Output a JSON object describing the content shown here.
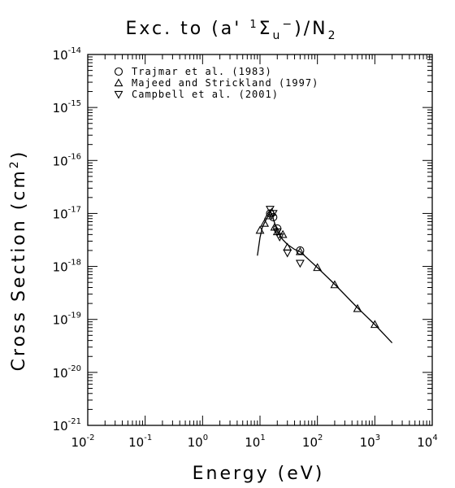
{
  "chart_data": {
    "type": "scatter",
    "title": {
      "prefix": "Exc. to (a'",
      "sup": "1",
      "sigma": "Σ",
      "sub": "u",
      "minus": "−",
      "suffix": ")/N",
      "suffix_sub": "2"
    },
    "xlabel": "Energy (eV)",
    "ylabel": "Cross Section (cm",
    "ylabel_sup": "2",
    "ylabel_end": ")",
    "x_scale": "log",
    "y_scale": "log",
    "xlim": [
      0.01,
      10000
    ],
    "ylim": [
      1e-21,
      1e-14
    ],
    "x_ticks": [
      {
        "base": "10",
        "exp": "-2"
      },
      {
        "base": "10",
        "exp": "-1"
      },
      {
        "base": "10",
        "exp": "0"
      },
      {
        "base": "10",
        "exp": "1"
      },
      {
        "base": "10",
        "exp": "2"
      },
      {
        "base": "10",
        "exp": "3"
      },
      {
        "base": "10",
        "exp": "4"
      }
    ],
    "y_ticks": [
      {
        "base": "10",
        "exp": "-21"
      },
      {
        "base": "10",
        "exp": "-20"
      },
      {
        "base": "10",
        "exp": "-19"
      },
      {
        "base": "10",
        "exp": "-18"
      },
      {
        "base": "10",
        "exp": "-17"
      },
      {
        "base": "10",
        "exp": "-16"
      },
      {
        "base": "10",
        "exp": "-15"
      },
      {
        "base": "10",
        "exp": "-14"
      }
    ],
    "legend_position": "top-left",
    "series": [
      {
        "name": "Trajmar et al. (1983)",
        "marker": "circle",
        "points": [
          [
            15,
            1e-17
          ],
          [
            17,
            8.5e-18
          ],
          [
            20,
            5.2e-18
          ],
          [
            50,
            2e-18
          ]
        ]
      },
      {
        "name": "Majeed and Strickland (1997)",
        "marker": "triangle-up",
        "points": [
          [
            10,
            4.8e-18
          ],
          [
            12,
            6.5e-18
          ],
          [
            14,
            9e-18
          ],
          [
            16,
            1.05e-17
          ],
          [
            18,
            5.5e-18
          ],
          [
            20,
            4.5e-18
          ],
          [
            25,
            4e-18
          ],
          [
            30,
            2.3e-18
          ],
          [
            50,
            1.9e-18
          ],
          [
            100,
            9.5e-19
          ],
          [
            200,
            4.5e-19
          ],
          [
            500,
            1.6e-19
          ],
          [
            1000,
            8e-20
          ]
        ]
      },
      {
        "name": "Campbell et al. (2001)",
        "marker": "triangle-down",
        "points": [
          [
            15,
            1.2e-17
          ],
          [
            17,
            1e-17
          ],
          [
            20,
            4.5e-18
          ],
          [
            22,
            3.6e-18
          ],
          [
            30,
            1.8e-18
          ],
          [
            50,
            1.15e-18
          ]
        ]
      }
    ],
    "recommended_curve": {
      "points": [
        [
          9,
          1.6e-18
        ],
        [
          10,
          3.5e-18
        ],
        [
          11,
          5.5e-18
        ],
        [
          13,
          8e-18
        ],
        [
          15,
          1.05e-17
        ],
        [
          16,
          1e-17
        ],
        [
          17,
          8e-18
        ],
        [
          20,
          4.5e-18
        ],
        [
          25,
          3.2e-18
        ],
        [
          30,
          2.6e-18
        ],
        [
          40,
          2.1e-18
        ],
        [
          50,
          1.9e-18
        ],
        [
          100,
          9.5e-19
        ],
        [
          200,
          4.6e-19
        ],
        [
          500,
          1.65e-19
        ],
        [
          1000,
          8e-20
        ],
        [
          2000,
          3.6e-20
        ]
      ]
    }
  }
}
